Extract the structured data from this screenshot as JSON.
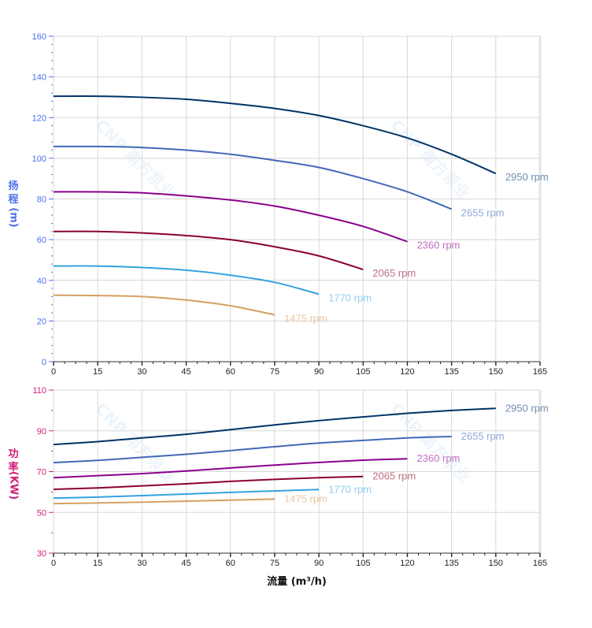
{
  "watermark": "CNP 南方泵业",
  "chart_data": [
    {
      "type": "line",
      "ylabel_chars": [
        "扬",
        "程"
      ],
      "ylabel_unit": "(m)",
      "xlim": [
        0,
        165
      ],
      "ylim": [
        0,
        160
      ],
      "x_ticks": [
        0,
        15,
        30,
        45,
        60,
        75,
        90,
        105,
        120,
        135,
        150,
        165
      ],
      "y_ticks": [
        0,
        20,
        40,
        60,
        80,
        100,
        120,
        140,
        160
      ],
      "axis_color": "#4a72e8",
      "grid": true,
      "series": [
        {
          "name": "2950 rpm",
          "color": "#003366",
          "label_color": "#6e8fb0",
          "x": [
            0,
            15,
            30,
            45,
            60,
            75,
            90,
            105,
            120,
            135,
            150
          ],
          "y": [
            130.5,
            130.5,
            130,
            129,
            127,
            124.5,
            121,
            116,
            110,
            102,
            92.5
          ]
        },
        {
          "name": "2655 rpm",
          "color": "#4169b8",
          "label_color": "#8fa8d8",
          "x": [
            0,
            15,
            30,
            45,
            60,
            75,
            90,
            105,
            120,
            135
          ],
          "y": [
            105.8,
            105.8,
            105.3,
            104,
            102,
            99,
            95.5,
            90,
            83.5,
            75
          ]
        },
        {
          "name": "2360 rpm",
          "color": "#8b008b",
          "label_color": "#c070c0",
          "x": [
            0,
            15,
            30,
            45,
            60,
            75,
            90,
            105,
            120
          ],
          "y": [
            83.5,
            83.5,
            83,
            81.5,
            79.5,
            76.5,
            72,
            66.5,
            59
          ]
        },
        {
          "name": "2065 rpm",
          "color": "#8b0030",
          "label_color": "#c07080",
          "x": [
            0,
            15,
            30,
            45,
            60,
            75,
            90,
            105
          ],
          "y": [
            64,
            64,
            63.3,
            62,
            60,
            56.5,
            52,
            45.3
          ]
        },
        {
          "name": "1770 rpm",
          "color": "#33a3e0",
          "label_color": "#90ccf0",
          "x": [
            0,
            15,
            30,
            45,
            60,
            75,
            90
          ],
          "y": [
            47,
            47,
            46.3,
            45,
            42.5,
            39,
            33.2
          ]
        },
        {
          "name": "1475 rpm",
          "color": "#d4a060",
          "label_color": "#e8c8a0",
          "x": [
            0,
            15,
            30,
            45,
            60,
            75
          ],
          "y": [
            32.7,
            32.5,
            32,
            30.3,
            27.5,
            23
          ]
        }
      ]
    },
    {
      "type": "line",
      "ylabel_chars": [
        "功",
        "率"
      ],
      "ylabel_unit": "(KW)",
      "xlabel": "流量 (m³/h)",
      "xlim": [
        0,
        165
      ],
      "ylim": [
        30,
        110
      ],
      "x_ticks": [
        0,
        15,
        30,
        45,
        60,
        75,
        90,
        105,
        120,
        135,
        150,
        165
      ],
      "y_ticks": [
        30,
        50,
        70,
        90,
        110
      ],
      "axis_color": "#d0207a",
      "grid": true,
      "series": [
        {
          "name": "2950 rpm",
          "color": "#003366",
          "label_color": "#6e8fb0",
          "x": [
            0,
            15,
            30,
            45,
            60,
            75,
            90,
            105,
            120,
            135,
            150
          ],
          "y": [
            83.3,
            84.7,
            86.5,
            88.3,
            90.6,
            92.9,
            95,
            96.8,
            98.6,
            100,
            101
          ]
        },
        {
          "name": "2655 rpm",
          "color": "#4169b8",
          "label_color": "#8fa8d8",
          "x": [
            0,
            15,
            30,
            45,
            60,
            75,
            90,
            105,
            120,
            135
          ],
          "y": [
            74.4,
            75.5,
            77,
            78.5,
            80.3,
            82.2,
            84,
            85.3,
            86.5,
            87.2
          ]
        },
        {
          "name": "2360 rpm",
          "color": "#8b008b",
          "label_color": "#c070c0",
          "x": [
            0,
            15,
            30,
            45,
            60,
            75,
            90,
            105,
            120
          ],
          "y": [
            67,
            68,
            69,
            70.3,
            71.8,
            73.2,
            74.5,
            75.6,
            76.3
          ]
        },
        {
          "name": "2065 rpm",
          "color": "#8b0030",
          "label_color": "#c07080",
          "x": [
            0,
            15,
            30,
            45,
            60,
            75,
            90,
            105
          ],
          "y": [
            61.3,
            62,
            63,
            64,
            65.2,
            66.2,
            67,
            67.6
          ]
        },
        {
          "name": "1770 rpm",
          "color": "#33a3e0",
          "label_color": "#90ccf0",
          "x": [
            0,
            15,
            30,
            45,
            60,
            75,
            90
          ],
          "y": [
            57,
            57.5,
            58.2,
            59,
            59.8,
            60.5,
            61.2
          ]
        },
        {
          "name": "1475 rpm",
          "color": "#d4a060",
          "label_color": "#e8c8a0",
          "x": [
            0,
            15,
            30,
            45,
            60,
            75
          ],
          "y": [
            54.3,
            54.6,
            55,
            55.5,
            56,
            56.5
          ]
        }
      ]
    }
  ]
}
